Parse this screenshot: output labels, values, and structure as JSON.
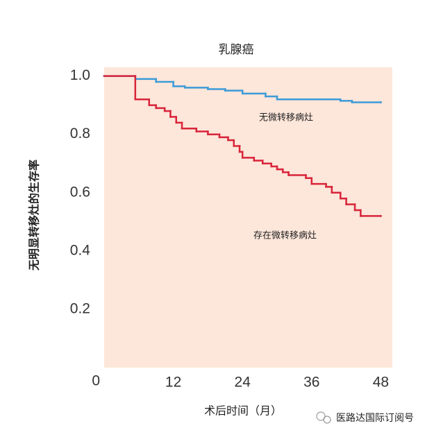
{
  "chart_data": {
    "type": "step",
    "title": "乳腺癌",
    "x_label": "术后时间（月）",
    "y_label": "无明显转移灶的生存率",
    "xlim": [
      0,
      50
    ],
    "ylim": [
      0,
      1.03
    ],
    "xticks": [
      12,
      24,
      36,
      48
    ],
    "yticks": [
      0,
      0.2,
      0.4,
      0.6,
      0.8,
      {
        "value": 1,
        "label": "1.0"
      }
    ],
    "plot_background": "#fde6da",
    "series": [
      {
        "name": "无微转移病灶",
        "color": "#3b9bd8",
        "x": [
          0,
          5.4,
          9,
          12,
          14,
          18,
          21,
          24,
          28,
          30,
          41,
          43,
          48
        ],
        "values": [
          1.0,
          0.99,
          0.98,
          0.965,
          0.96,
          0.955,
          0.95,
          0.94,
          0.93,
          0.92,
          0.915,
          0.91,
          0.91
        ]
      },
      {
        "name": "存在微转移病灶",
        "color": "#d8243a",
        "x": [
          0,
          5.4,
          7.8,
          9,
          10.5,
          11.5,
          12.5,
          13.5,
          16,
          18,
          20,
          21.5,
          22.5,
          23.5,
          24,
          26,
          27.5,
          29,
          30,
          31,
          32,
          35,
          36,
          38.5,
          39.5,
          41,
          42,
          43.5,
          44.5,
          48
        ],
        "values": [
          1.0,
          0.92,
          0.9,
          0.89,
          0.88,
          0.86,
          0.84,
          0.82,
          0.81,
          0.8,
          0.79,
          0.78,
          0.76,
          0.74,
          0.72,
          0.71,
          0.7,
          0.69,
          0.68,
          0.67,
          0.66,
          0.65,
          0.63,
          0.62,
          0.6,
          0.58,
          0.56,
          0.54,
          0.52,
          0.52
        ]
      }
    ],
    "watermark": "医路达国际订阅号"
  }
}
